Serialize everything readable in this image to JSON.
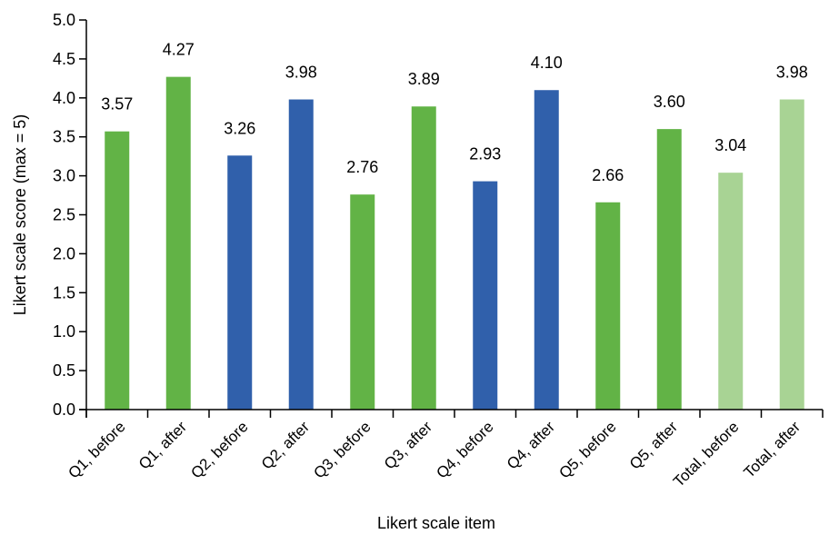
{
  "chart_data": {
    "type": "bar",
    "title": "",
    "xlabel": "Likert scale item",
    "ylabel": "Likert scale score (max = 5)",
    "ylim": [
      0,
      5
    ],
    "yticks": [
      "0.0",
      "0.5",
      "1.0",
      "1.5",
      "2.0",
      "2.5",
      "3.0",
      "3.5",
      "4.0",
      "4.5",
      "5.0"
    ],
    "categories": [
      "Q1, before",
      "Q1, after",
      "Q2, before",
      "Q2, after",
      "Q3, before",
      "Q3, after",
      "Q4, before",
      "Q4, after",
      "Q5, before",
      "Q5, after",
      "Total, before",
      "Total, after"
    ],
    "values": [
      3.57,
      4.27,
      3.26,
      3.98,
      2.76,
      3.89,
      2.93,
      4.1,
      2.66,
      3.6,
      3.04,
      3.98
    ],
    "value_labels": [
      "3.57",
      "4.27",
      "3.26",
      "3.98",
      "2.76",
      "3.89",
      "2.93",
      "4.10",
      "2.66",
      "3.60",
      "3.04",
      "3.98"
    ],
    "bar_colors": [
      "#62b346",
      "#62b346",
      "#3060ab",
      "#3060ab",
      "#62b346",
      "#62b346",
      "#3060ab",
      "#3060ab",
      "#62b346",
      "#62b346",
      "#a8d394",
      "#a8d394"
    ],
    "grid": false,
    "legend": "none"
  }
}
